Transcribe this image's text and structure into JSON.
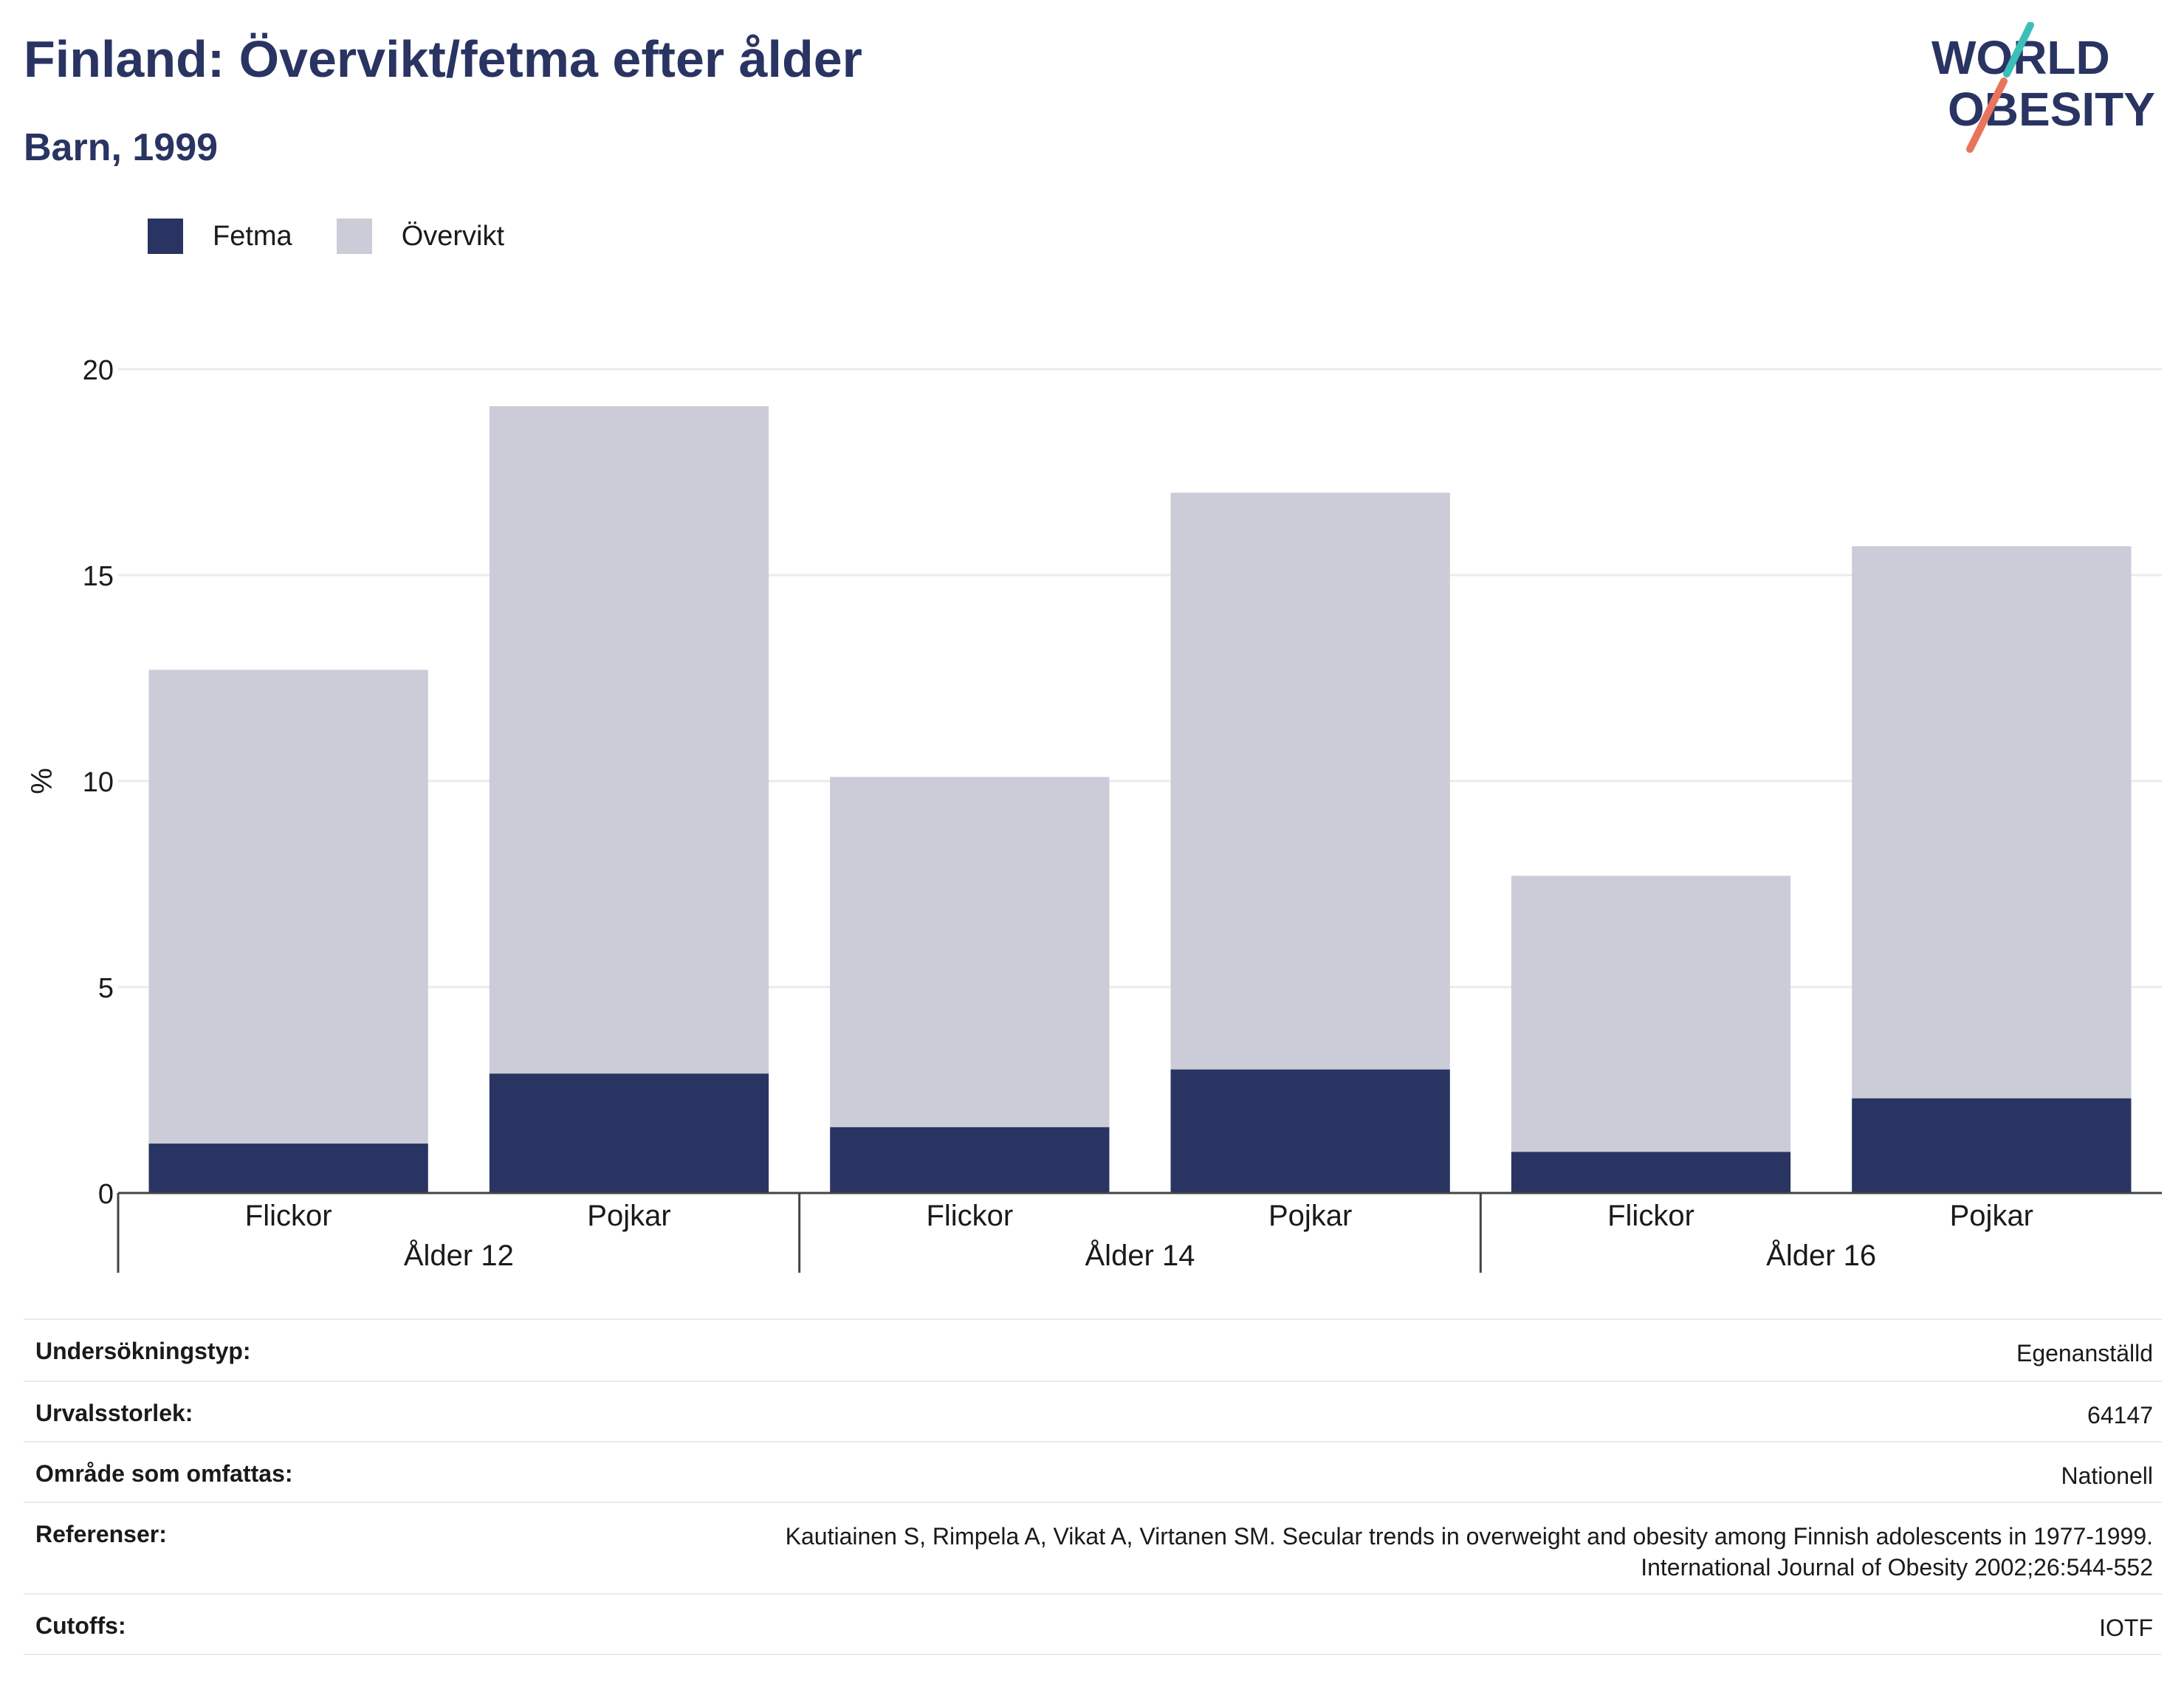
{
  "header": {
    "title": "Finland: Övervikt/fetma efter ålder",
    "subtitle": "Barn, 1999"
  },
  "logo": {
    "line1": "WORLD",
    "line2": "OBESITY",
    "accent_teal": "#3bbfb9",
    "accent_coral": "#e8745c",
    "text_color": "#293462"
  },
  "legend": [
    {
      "label": "Fetma",
      "color": "#293462"
    },
    {
      "label": "Övervikt",
      "color": "#cbccd8"
    }
  ],
  "chart_data": {
    "type": "bar",
    "stacked": true,
    "title": "Finland: Övervikt/fetma efter ålder",
    "subtitle": "Barn, 1999",
    "ylabel": "%",
    "ylim": [
      0,
      20
    ],
    "yticks": [
      0,
      5,
      10,
      15,
      20
    ],
    "grid": true,
    "legend_position": "top-left",
    "groups": [
      {
        "label": "Ålder 12",
        "categories": [
          "Flickor",
          "Pojkar"
        ]
      },
      {
        "label": "Ålder 14",
        "categories": [
          "Flickor",
          "Pojkar"
        ]
      },
      {
        "label": "Ålder 16",
        "categories": [
          "Flickor",
          "Pojkar"
        ]
      }
    ],
    "series": [
      {
        "name": "Fetma",
        "color": "#293462",
        "values": [
          1.2,
          2.9,
          1.6,
          3.0,
          1.0,
          2.3
        ]
      },
      {
        "name": "Övervikt",
        "color": "#cbccd8",
        "values": [
          11.5,
          16.2,
          8.5,
          14.0,
          6.7,
          13.4
        ]
      }
    ]
  },
  "info_table": [
    {
      "label": "Undersökningstyp:",
      "value": "Egenanställd"
    },
    {
      "label": "Urvalsstorlek:",
      "value": "64147"
    },
    {
      "label": "Område som omfattas:",
      "value": "Nationell"
    },
    {
      "label": "Referenser:",
      "value": "Kautiainen S, Rimpela A, Vikat A, Virtanen SM. Secular trends in overweight and obesity among Finnish adolescents in 1977-1999.\nInternational Journal of Obesity 2002;26:544-552"
    },
    {
      "label": "Cutoffs:",
      "value": "IOTF"
    }
  ]
}
